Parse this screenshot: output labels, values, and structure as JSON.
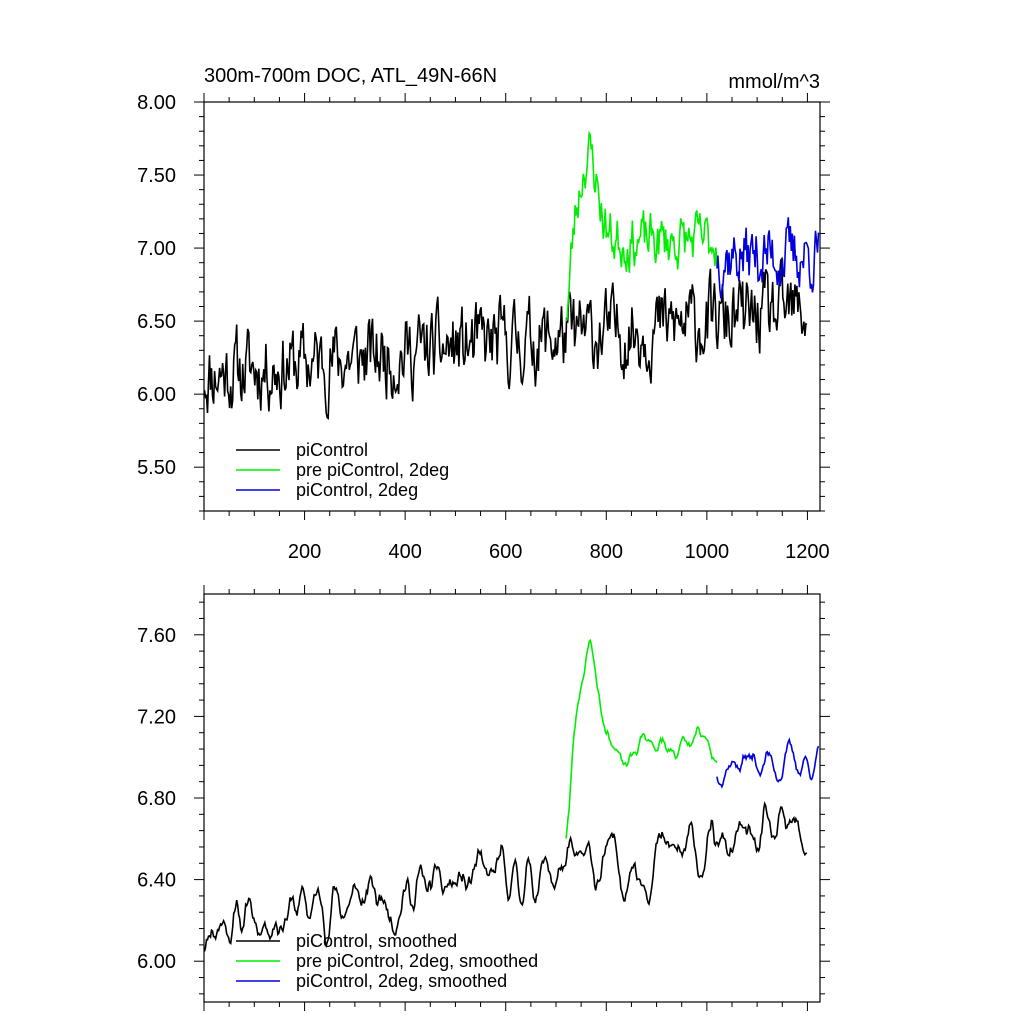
{
  "chart_data": [
    {
      "type": "line",
      "title": "300m-700m DOC, ATL_49N-66N",
      "units_label": "mmol/m^3",
      "xlim": [
        0,
        1225
      ],
      "ylim": [
        5.2,
        8.0
      ],
      "xticks": [
        200,
        400,
        600,
        800,
        1000,
        1200
      ],
      "xtick_labels": [
        "200",
        "400",
        "600",
        "800",
        "1000",
        "1200"
      ],
      "yticks": [
        5.5,
        6.0,
        6.5,
        7.0,
        7.5,
        8.0
      ],
      "ytick_labels": [
        "5.50",
        "6.00",
        "6.50",
        "7.00",
        "7.50",
        "8.00"
      ],
      "legend": [
        {
          "label": "piControl",
          "color": "#000000"
        },
        {
          "label": "pre piControl, 2deg",
          "color": "#00ee00"
        },
        {
          "label": "piControl, 2deg",
          "color": "#0000dd"
        }
      ],
      "series": [
        {
          "name": "piControl",
          "color": "#000000",
          "x_start": 1,
          "x_end": 1200,
          "mean": 6.35,
          "trend_per_year": 0.00035,
          "noise": 0.22,
          "seed": 11
        },
        {
          "name": "pre piControl, 2deg",
          "color": "#00ee00",
          "x_start": 720,
          "x_end": 1020,
          "mean": 7.05,
          "peak_x": 765,
          "peak_value": 7.64,
          "noise": 0.15,
          "seed": 23
        },
        {
          "name": "piControl, 2deg",
          "color": "#0000dd",
          "x_start": 1020,
          "x_end": 1222,
          "mean": 6.95,
          "noise": 0.18,
          "seed": 37
        }
      ]
    },
    {
      "type": "line",
      "title": "",
      "xlim": [
        0,
        1225
      ],
      "ylim": [
        5.8,
        7.8
      ],
      "xticks": [
        200,
        400,
        600,
        800,
        1000,
        1200
      ],
      "xtick_labels": [],
      "yticks": [
        6.0,
        6.4,
        6.8,
        7.2,
        7.6
      ],
      "ytick_labels": [
        "6.00",
        "6.40",
        "6.80",
        "7.20",
        "7.60"
      ],
      "legend": [
        {
          "label": "piControl, smoothed",
          "color": "#000000"
        },
        {
          "label": "pre piControl, 2deg, smoothed",
          "color": "#00ee00"
        },
        {
          "label": "piControl, 2deg, smoothed",
          "color": "#0000dd"
        }
      ],
      "series": [
        {
          "name": "piControl, smoothed",
          "color": "#000000",
          "x_start": 1,
          "x_end": 1200,
          "mean": 6.4,
          "trend_per_year": 0.00035,
          "noise": 0.18,
          "seed": 11
        },
        {
          "name": "pre piControl, 2deg, smoothed",
          "color": "#00ee00",
          "x_start": 720,
          "x_end": 1020,
          "mean": 7.05,
          "peak_x": 765,
          "peak_value": 7.55,
          "noise": 0.1,
          "seed": 23
        },
        {
          "name": "piControl, 2deg, smoothed",
          "color": "#0000dd",
          "x_start": 1020,
          "x_end": 1222,
          "mean": 6.98,
          "noise": 0.12,
          "seed": 37
        }
      ]
    }
  ]
}
